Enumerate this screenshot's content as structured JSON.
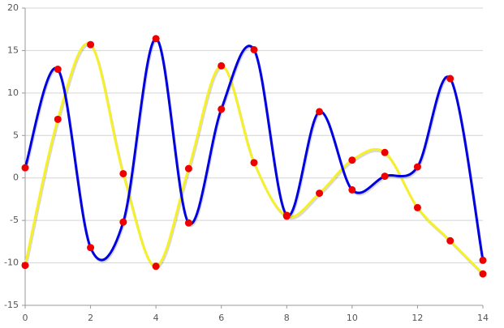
{
  "chart_data": {
    "type": "line",
    "x": [
      0,
      1,
      2,
      3,
      4,
      5,
      6,
      7,
      8,
      9,
      10,
      11,
      12,
      13,
      14
    ],
    "series": [
      {
        "color": "#f5f02a",
        "values": [
          -10.3,
          6.9,
          15.7,
          0.5,
          -10.4,
          1.1,
          13.2,
          1.8,
          -4.5,
          -1.8,
          2.1,
          3.0,
          -3.5,
          -7.4,
          -11.3
        ]
      },
      {
        "color": "#0000e0",
        "values": [
          1.2,
          12.8,
          -8.2,
          -5.2,
          16.4,
          -5.3,
          8.1,
          15.1,
          -4.4,
          7.8,
          -1.4,
          0.2,
          1.3,
          11.7,
          -9.7
        ]
      }
    ],
    "marker_color": "#ee0000",
    "xlim": [
      0,
      14
    ],
    "xticks": [
      0,
      2,
      4,
      6,
      8,
      10,
      12,
      14
    ],
    "ylim": [
      -15,
      20
    ],
    "yticks": [
      -15,
      -10,
      -5,
      0,
      5,
      10,
      15,
      20
    ],
    "grid": true
  }
}
